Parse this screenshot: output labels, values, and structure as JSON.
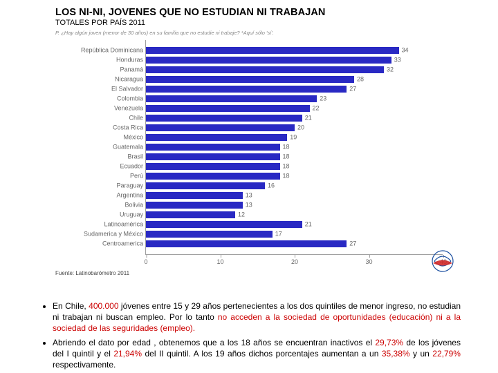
{
  "title": "LOS NI-NI, JOVENES QUE NO ESTUDIAN NI TRABAJAN",
  "subtitle": "TOTALES POR PAÍS 2011",
  "question": "P. ¿Hay algún joven (menor de 30 años) en su familia que no estudie ni trabaje? *Aquí sólo 'sí'.",
  "fuente": "Fuente: Latinobarómetro 2011",
  "chart": {
    "type": "bar-horizontal",
    "xlim": [
      0,
      40
    ],
    "xtick_step": 10,
    "bar_color": "#2929c3",
    "background_color": "#ffffff",
    "axis_color": "#a0a0a0",
    "label_color": "#666666",
    "label_fontsize": 9,
    "categories": [
      "República Dominicana",
      "Honduras",
      "Panamá",
      "Nicaragua",
      "El Salvador",
      "Colombia",
      "Venezuela",
      "Chile",
      "Costa Rica",
      "México",
      "Guatemala",
      "Brasil",
      "Ecuador",
      "Perú",
      "Paraguay",
      "Argentina",
      "Bolivia",
      "Uruguay",
      "Latinoamérica",
      "Sudamerica y México",
      "Centroamerica"
    ],
    "values": [
      34,
      33,
      32,
      28,
      27,
      23,
      22,
      21,
      20,
      19,
      18,
      18,
      18,
      18,
      16,
      13,
      13,
      12,
      21,
      17,
      27
    ]
  },
  "bullets": [
    {
      "parts": [
        {
          "t": "En Chile, "
        },
        {
          "t": "400.000",
          "red": true
        },
        {
          "t": " jóvenes entre 15 y 29 años  pertenecientes a los dos quintiles de menor ingreso, no estudian ni trabajan ni buscan empleo. Por lo tanto "
        },
        {
          "t": "no acceden a la sociedad de oportunidades (educación) ni a la sociedad de las seguridades (empleo).",
          "red": true
        }
      ]
    },
    {
      "parts": [
        {
          "t": "Abriendo el dato por edad , obtenemos que a los 18 años se encuentran inactivos el "
        },
        {
          "t": "29,73%",
          "red": true
        },
        {
          "t": " de los jóvenes del  I quintil y el "
        },
        {
          "t": "21,94%",
          "red": true
        },
        {
          "t": " del  II quintil. A los 19 años dichos porcentajes aumentan a un "
        },
        {
          "t": "35,38%",
          "red": true
        },
        {
          "t": " y un "
        },
        {
          "t": "22,79%",
          "red": true
        },
        {
          "t": " respectivamente."
        }
      ]
    }
  ]
}
